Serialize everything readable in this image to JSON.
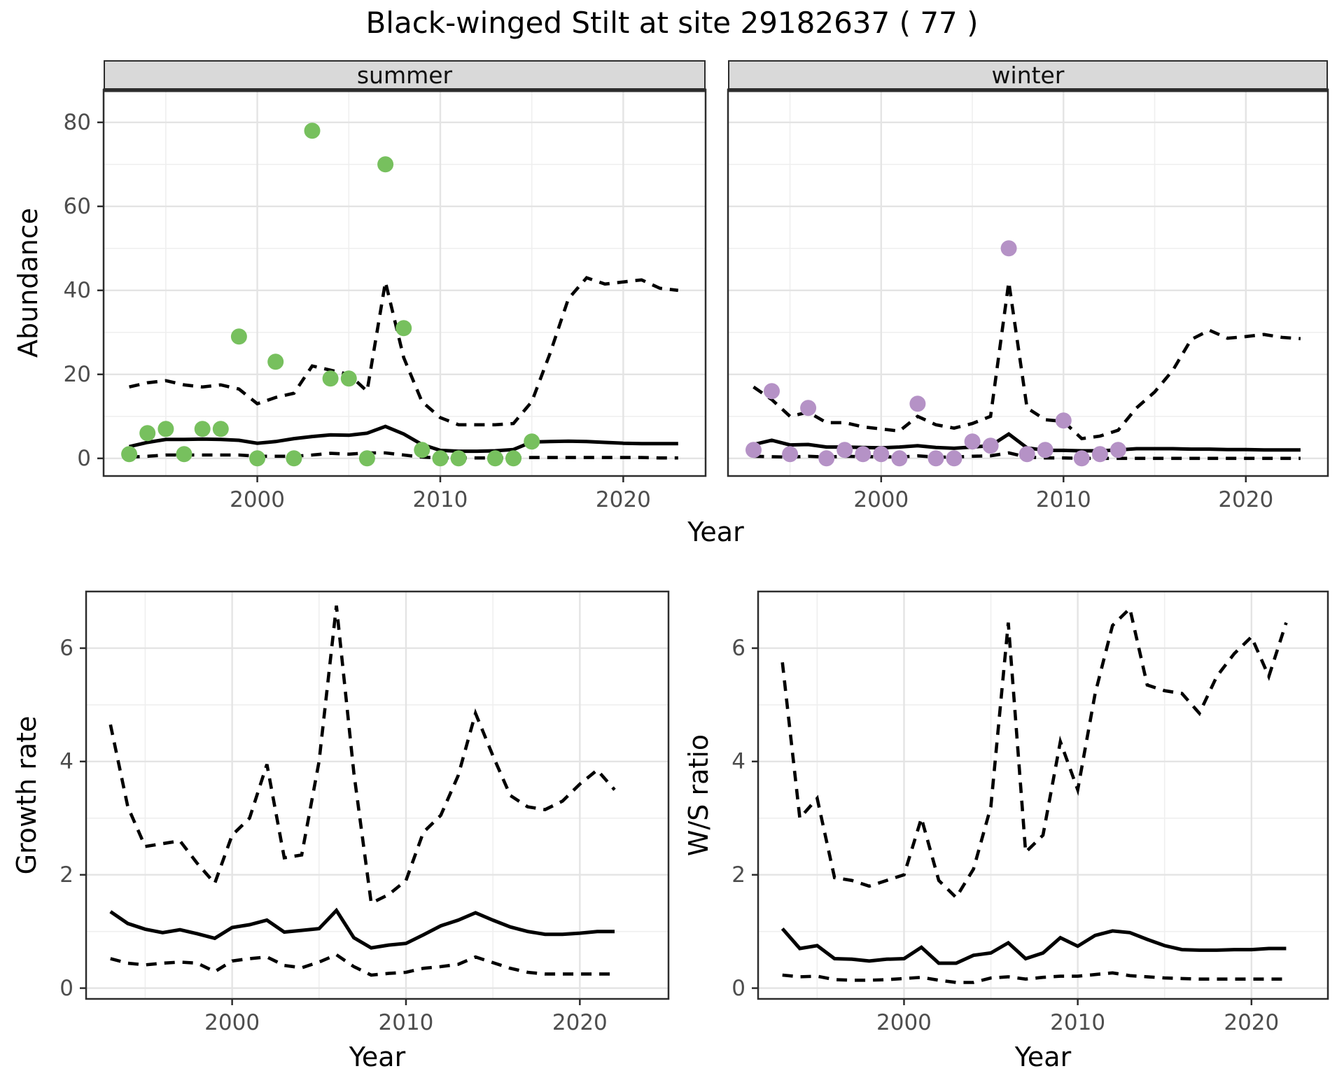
{
  "title": "Black-winged Stilt at site 29182637 ( 77 )",
  "colors": {
    "summer_points": "#77C05E",
    "winter_points": "#B592C6",
    "line": "#000000",
    "grid_major": "#E4E4E4",
    "grid_minor": "#EFEFEF",
    "strip_bg": "#D9D9D9",
    "panel_border": "#2D2D2D",
    "tick_text": "#4D4D4D"
  },
  "chart_data": [
    {
      "key": "abundance_summer",
      "type": "line+scatter",
      "facet": "summer",
      "xlabel": "Year",
      "ylabel": "Abundance",
      "xlim": [
        1991.6,
        2024.5
      ],
      "ylim": [
        -4.2,
        87.8
      ],
      "x_ticks_major": [
        2000,
        2010,
        2020
      ],
      "x_ticks_minor": [
        1995,
        2005,
        2015
      ],
      "y_ticks_major": [
        0,
        20,
        40,
        60,
        80
      ],
      "y_ticks_minor": [
        10,
        30,
        50,
        70
      ],
      "grid": true,
      "legend": "none",
      "line_x": [
        1993,
        1994,
        1995,
        1996,
        1997,
        1998,
        1999,
        2000,
        2001,
        2002,
        2003,
        2004,
        2005,
        2006,
        2007,
        2008,
        2009,
        2010,
        2011,
        2012,
        2013,
        2014,
        2015,
        2016,
        2017,
        2018,
        2019,
        2020,
        2021,
        2022,
        2023
      ],
      "series": [
        {
          "name": "lower 95% CI",
          "style": "dashed",
          "values": [
            0.3,
            0.5,
            0.8,
            0.8,
            0.8,
            0.8,
            0.8,
            0.5,
            0.5,
            0.5,
            0.8,
            1.2,
            1.0,
            1.3,
            1.3,
            0.8,
            0.3,
            0.1,
            0.1,
            0.1,
            0.1,
            0.1,
            0.2,
            0.2,
            0.2,
            0.2,
            0.2,
            0.2,
            0.2,
            0.1,
            0.1
          ]
        },
        {
          "name": "upper 95% CI",
          "style": "dashed",
          "values": [
            17,
            18,
            18.5,
            17.5,
            17,
            17.5,
            16.5,
            13,
            14.5,
            15.5,
            22,
            21,
            20,
            16,
            42,
            24,
            13.5,
            9.7,
            8,
            8,
            8,
            8.3,
            13.5,
            25,
            38,
            43,
            41.5,
            42,
            42.5,
            40.5,
            40
          ]
        },
        {
          "name": "median",
          "style": "solid",
          "values": [
            2.8,
            3.8,
            4.5,
            4.5,
            4.6,
            4.5,
            4.3,
            3.6,
            4.0,
            4.7,
            5.2,
            5.6,
            5.5,
            6.0,
            7.6,
            5.8,
            3.3,
            1.9,
            1.7,
            1.7,
            1.8,
            2.1,
            3.9,
            4.0,
            4.1,
            4.0,
            3.8,
            3.6,
            3.5,
            3.5,
            3.5
          ]
        }
      ],
      "points": {
        "name": "summer counts",
        "color_key": "summer_points",
        "x": [
          1993,
          1994,
          1995,
          1996,
          1997,
          1998,
          1999,
          2000,
          2001,
          2002,
          2003,
          2004,
          2005,
          2006,
          2007,
          2008,
          2009,
          2010,
          2011,
          2013,
          2014,
          2015
        ],
        "y": [
          1,
          6,
          7,
          1,
          7,
          7,
          29,
          0,
          23,
          0,
          78,
          19,
          19,
          0,
          70,
          31,
          2,
          0,
          0,
          0,
          0,
          4
        ]
      }
    },
    {
      "key": "abundance_winter",
      "type": "line+scatter",
      "facet": "winter",
      "xlabel": "Year",
      "ylabel": "Abundance",
      "xlim": [
        1991.6,
        2024.5
      ],
      "ylim": [
        -4.2,
        87.8
      ],
      "x_ticks_major": [
        2000,
        2010,
        2020
      ],
      "x_ticks_minor": [
        1995,
        2005,
        2015
      ],
      "y_ticks_major": [
        0,
        20,
        40,
        60,
        80
      ],
      "y_ticks_minor": [
        10,
        30,
        50,
        70
      ],
      "grid": true,
      "legend": "none",
      "line_x": [
        1993,
        1994,
        1995,
        1996,
        1997,
        1998,
        1999,
        2000,
        2001,
        2002,
        2003,
        2004,
        2005,
        2006,
        2007,
        2008,
        2009,
        2010,
        2011,
        2012,
        2013,
        2014,
        2015,
        2016,
        2017,
        2018,
        2019,
        2020,
        2021,
        2022,
        2023
      ],
      "series": [
        {
          "name": "lower 95% CI",
          "style": "dashed",
          "values": [
            0.5,
            0.4,
            0.3,
            0.5,
            0.3,
            0.5,
            0.4,
            0.4,
            0.3,
            0.6,
            0.3,
            0.3,
            0.5,
            0.6,
            1.3,
            0.3,
            0.1,
            0.1,
            0,
            0,
            0,
            0,
            0,
            0,
            0,
            0,
            0,
            0,
            0,
            0,
            0
          ]
        },
        {
          "name": "upper 95% CI",
          "style": "dashed",
          "values": [
            17,
            14,
            10,
            11,
            8.5,
            8.5,
            7.5,
            7,
            6.5,
            10,
            8,
            7.2,
            8.3,
            10,
            42,
            12,
            9.2,
            8.8,
            4.7,
            5.3,
            6.7,
            12,
            15.8,
            21,
            28.3,
            30.5,
            28.6,
            29,
            29.5,
            28.8,
            28.5
          ]
        },
        {
          "name": "median",
          "style": "solid",
          "values": [
            3.3,
            4.3,
            3.2,
            3.3,
            2.7,
            2.7,
            2.6,
            2.5,
            2.7,
            3.0,
            2.6,
            2.4,
            2.7,
            3.0,
            5.8,
            2.5,
            1.9,
            1.9,
            1.8,
            1.8,
            2.0,
            2.3,
            2.3,
            2.3,
            2.2,
            2.2,
            2.1,
            2.1,
            2.0,
            2.0,
            2.0
          ]
        }
      ],
      "points": {
        "name": "winter counts",
        "color_key": "winter_points",
        "x": [
          1993,
          1994,
          1995,
          1996,
          1997,
          1998,
          1999,
          2000,
          2001,
          2002,
          2003,
          2004,
          2005,
          2006,
          2007,
          2008,
          2009,
          2010,
          2011,
          2012,
          2013
        ],
        "y": [
          2,
          16,
          1,
          12,
          0,
          2,
          1,
          1,
          0,
          13,
          0,
          0,
          4,
          3,
          50,
          1,
          2,
          9,
          0,
          1,
          2
        ]
      }
    },
    {
      "key": "growth_rate",
      "type": "line",
      "facet": null,
      "xlabel": "Year",
      "ylabel": "Growth rate",
      "xlim": [
        1991.6,
        2025.1
      ],
      "ylim": [
        -0.19,
        7.0
      ],
      "x_ticks_major": [
        2000,
        2010,
        2020
      ],
      "x_ticks_minor": [
        1995,
        2005,
        2015
      ],
      "y_ticks_major": [
        0,
        2,
        4,
        6
      ],
      "y_ticks_minor": [
        1,
        3,
        5
      ],
      "grid": true,
      "legend": "none",
      "line_x": [
        1993,
        1994,
        1995,
        1996,
        1997,
        1998,
        1999,
        2000,
        2001,
        2002,
        2003,
        2004,
        2005,
        2006,
        2007,
        2008,
        2009,
        2010,
        2011,
        2012,
        2013,
        2014,
        2015,
        2016,
        2017,
        2018,
        2019,
        2020,
        2021,
        2022
      ],
      "series": [
        {
          "name": "lower 95% CI",
          "style": "dashed",
          "values": [
            0.52,
            0.44,
            0.41,
            0.44,
            0.46,
            0.44,
            0.29,
            0.48,
            0.52,
            0.55,
            0.4,
            0.36,
            0.46,
            0.59,
            0.38,
            0.23,
            0.26,
            0.28,
            0.35,
            0.38,
            0.42,
            0.55,
            0.45,
            0.35,
            0.28,
            0.25,
            0.25,
            0.25,
            0.25,
            0.25
          ]
        },
        {
          "name": "upper 95% CI",
          "style": "dashed",
          "values": [
            4.65,
            3.2,
            2.5,
            2.55,
            2.6,
            2.2,
            1.85,
            2.7,
            3.0,
            3.95,
            2.3,
            2.35,
            4.0,
            6.75,
            3.8,
            1.5,
            1.65,
            1.9,
            2.75,
            3.05,
            3.75,
            4.85,
            4.1,
            3.4,
            3.2,
            3.15,
            3.3,
            3.6,
            3.85,
            3.5
          ]
        },
        {
          "name": "median",
          "style": "solid",
          "values": [
            1.35,
            1.14,
            1.04,
            0.98,
            1.03,
            0.96,
            0.88,
            1.07,
            1.12,
            1.2,
            0.99,
            1.02,
            1.05,
            1.37,
            0.89,
            0.71,
            0.76,
            0.79,
            0.94,
            1.1,
            1.2,
            1.33,
            1.2,
            1.08,
            1.0,
            0.95,
            0.95,
            0.97,
            1.0,
            1.0
          ]
        }
      ],
      "points": null
    },
    {
      "key": "ws_ratio",
      "type": "line",
      "facet": null,
      "xlabel": "Year",
      "ylabel": "W/S ratio",
      "xlim": [
        1991.6,
        2024.4
      ],
      "ylim": [
        -0.19,
        7.0
      ],
      "x_ticks_major": [
        2000,
        2010,
        2020
      ],
      "x_ticks_minor": [
        1995,
        2005,
        2015
      ],
      "y_ticks_major": [
        0,
        2,
        4,
        6
      ],
      "y_ticks_minor": [
        1,
        3,
        5
      ],
      "grid": true,
      "legend": "none",
      "line_x": [
        1993,
        1994,
        1995,
        1996,
        1997,
        1998,
        1999,
        2000,
        2001,
        2002,
        2003,
        2004,
        2005,
        2006,
        2007,
        2008,
        2009,
        2010,
        2011,
        2012,
        2013,
        2014,
        2015,
        2016,
        2017,
        2018,
        2019,
        2020,
        2021,
        2022
      ],
      "series": [
        {
          "name": "lower 95% CI",
          "style": "dashed",
          "values": [
            0.23,
            0.2,
            0.21,
            0.15,
            0.14,
            0.14,
            0.15,
            0.17,
            0.19,
            0.14,
            0.1,
            0.1,
            0.18,
            0.2,
            0.16,
            0.19,
            0.21,
            0.21,
            0.24,
            0.27,
            0.22,
            0.2,
            0.18,
            0.17,
            0.16,
            0.16,
            0.16,
            0.16,
            0.16,
            0.16
          ]
        },
        {
          "name": "upper 95% CI",
          "style": "dashed",
          "values": [
            5.75,
            3.0,
            3.35,
            1.95,
            1.9,
            1.8,
            1.9,
            2.0,
            3.0,
            1.9,
            1.6,
            2.1,
            3.2,
            6.45,
            2.4,
            2.7,
            4.35,
            3.5,
            5.2,
            6.4,
            6.7,
            5.35,
            5.25,
            5.2,
            4.85,
            5.5,
            5.9,
            6.2,
            5.5,
            6.45
          ]
        },
        {
          "name": "median",
          "style": "solid",
          "values": [
            1.05,
            0.7,
            0.75,
            0.52,
            0.51,
            0.48,
            0.51,
            0.52,
            0.72,
            0.44,
            0.44,
            0.58,
            0.62,
            0.8,
            0.52,
            0.62,
            0.89,
            0.74,
            0.93,
            1.01,
            0.98,
            0.86,
            0.75,
            0.68,
            0.67,
            0.67,
            0.68,
            0.68,
            0.7,
            0.7
          ]
        }
      ],
      "points": null
    }
  ]
}
